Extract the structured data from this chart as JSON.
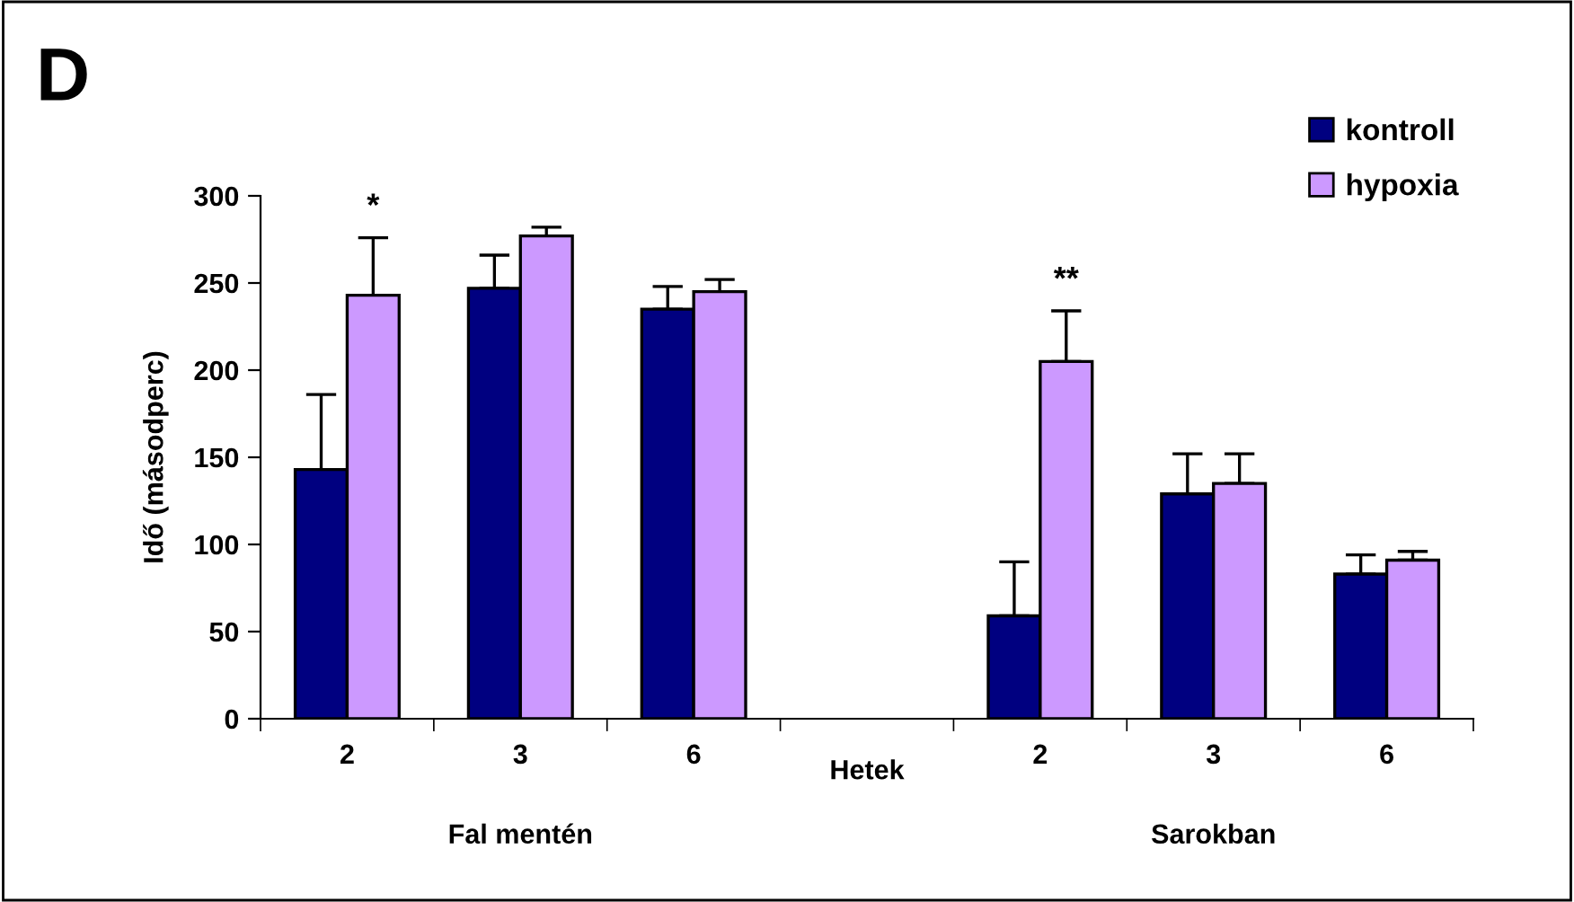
{
  "chart_data": {
    "type": "bar",
    "categories": [
      "2",
      "3",
      "6",
      null,
      "2",
      "3",
      "6"
    ],
    "xlabel": "Hetek",
    "ylabel": "Idő (másodperc)",
    "series": [
      {
        "name": "kontroll",
        "color": "#000080",
        "values": [
          143,
          247,
          235,
          null,
          59,
          129,
          83
        ],
        "errors": [
          [
            143,
            186
          ],
          [
            247,
            266
          ],
          [
            235,
            248
          ],
          null,
          [
            59,
            90
          ],
          [
            129,
            152
          ],
          [
            83,
            94
          ]
        ]
      },
      {
        "name": "hypoxia",
        "color": "#cc99ff",
        "values": [
          243,
          277,
          245,
          null,
          205,
          135,
          91
        ],
        "errors": [
          [
            243,
            276
          ],
          [
            277,
            282
          ],
          [
            245,
            252
          ],
          null,
          [
            205,
            234
          ],
          [
            135,
            152
          ],
          [
            91,
            96
          ]
        ]
      }
    ],
    "annotations": [
      "D",
      "*",
      "**",
      "Fal mentén",
      "Sarokban"
    ],
    "ylim": [
      0,
      300
    ],
    "yticks": [
      0,
      50,
      100,
      150,
      200,
      250,
      300
    ],
    "grid": false,
    "legend": "top right"
  }
}
